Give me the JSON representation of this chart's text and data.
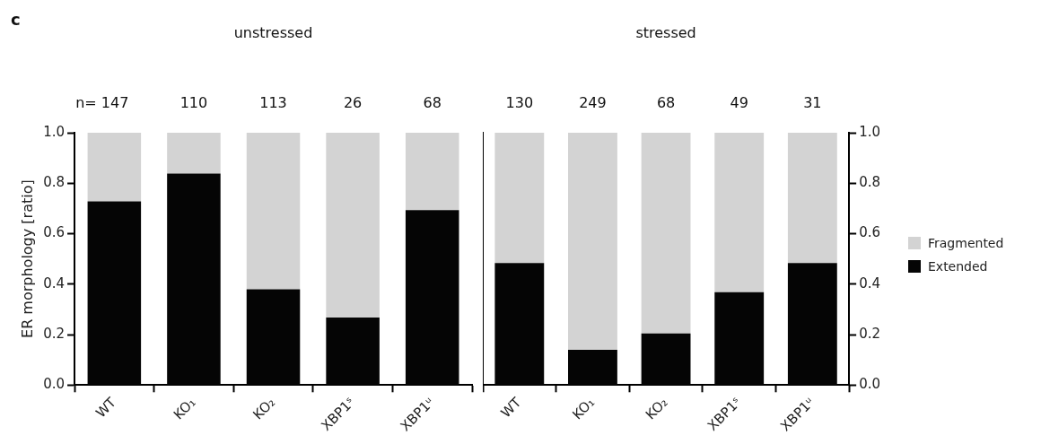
{
  "chart_data": [
    {
      "type": "bar",
      "stacked": true,
      "ylabel": "ER morphology [ratio]",
      "categories": [
        "WT",
        "KO₁",
        "KO₂",
        "XBP1ˢ",
        "XBP1ᵘ"
      ],
      "series": [
        {
          "color": "#050505",
          "values": [
            0.728,
            0.838,
            0.38,
            0.268,
            0.693
          ]
        },
        {
          "color": "#d3d3d3",
          "values": [
            0.272,
            0.162,
            0.62,
            0.732,
            0.307
          ]
        }
      ],
      "ylim": [
        0,
        1
      ],
      "yticks": [
        {
          "value": 0,
          "label": "0.0"
        },
        {
          "value": 0.2,
          "label": "0.2"
        },
        {
          "value": 0.4,
          "label": "0.4"
        },
        {
          "value": 0.6,
          "label": "0.6"
        },
        {
          "value": 0.8,
          "label": "0.8"
        },
        {
          "value": 1,
          "label": "1.0"
        }
      ],
      "grid": false,
      "annotations": [
        "c",
        "unstressed",
        "n= 147",
        "110",
        "113",
        "26",
        "68"
      ]
    },
    {
      "type": "bar",
      "stacked": true,
      "categories": [
        "WT",
        "KO₁",
        "KO₂",
        "XBP1ˢ",
        "XBP1ᵘ"
      ],
      "series": [
        {
          "name": "Extended",
          "color": "#050505",
          "values": [
            0.484,
            0.14,
            0.205,
            0.368,
            0.484
          ]
        },
        {
          "name": "Fragmented",
          "color": "#d3d3d3",
          "values": [
            0.516,
            0.86,
            0.795,
            0.632,
            0.516
          ]
        }
      ],
      "ylim": [
        0,
        1
      ],
      "y2lim": [
        0,
        1
      ],
      "y2ticks": [
        {
          "value": 0,
          "label": "0.0"
        },
        {
          "value": 0.2,
          "label": "0.2"
        },
        {
          "value": 0.4,
          "label": "0.4"
        },
        {
          "value": 0.6,
          "label": "0.6"
        },
        {
          "value": 0.8,
          "label": "0.8"
        },
        {
          "value": 1,
          "label": "1.0"
        }
      ],
      "legend": "right",
      "grid": false,
      "annotations": [
        "stressed",
        "130",
        "249",
        "68",
        "49",
        "31"
      ]
    }
  ]
}
